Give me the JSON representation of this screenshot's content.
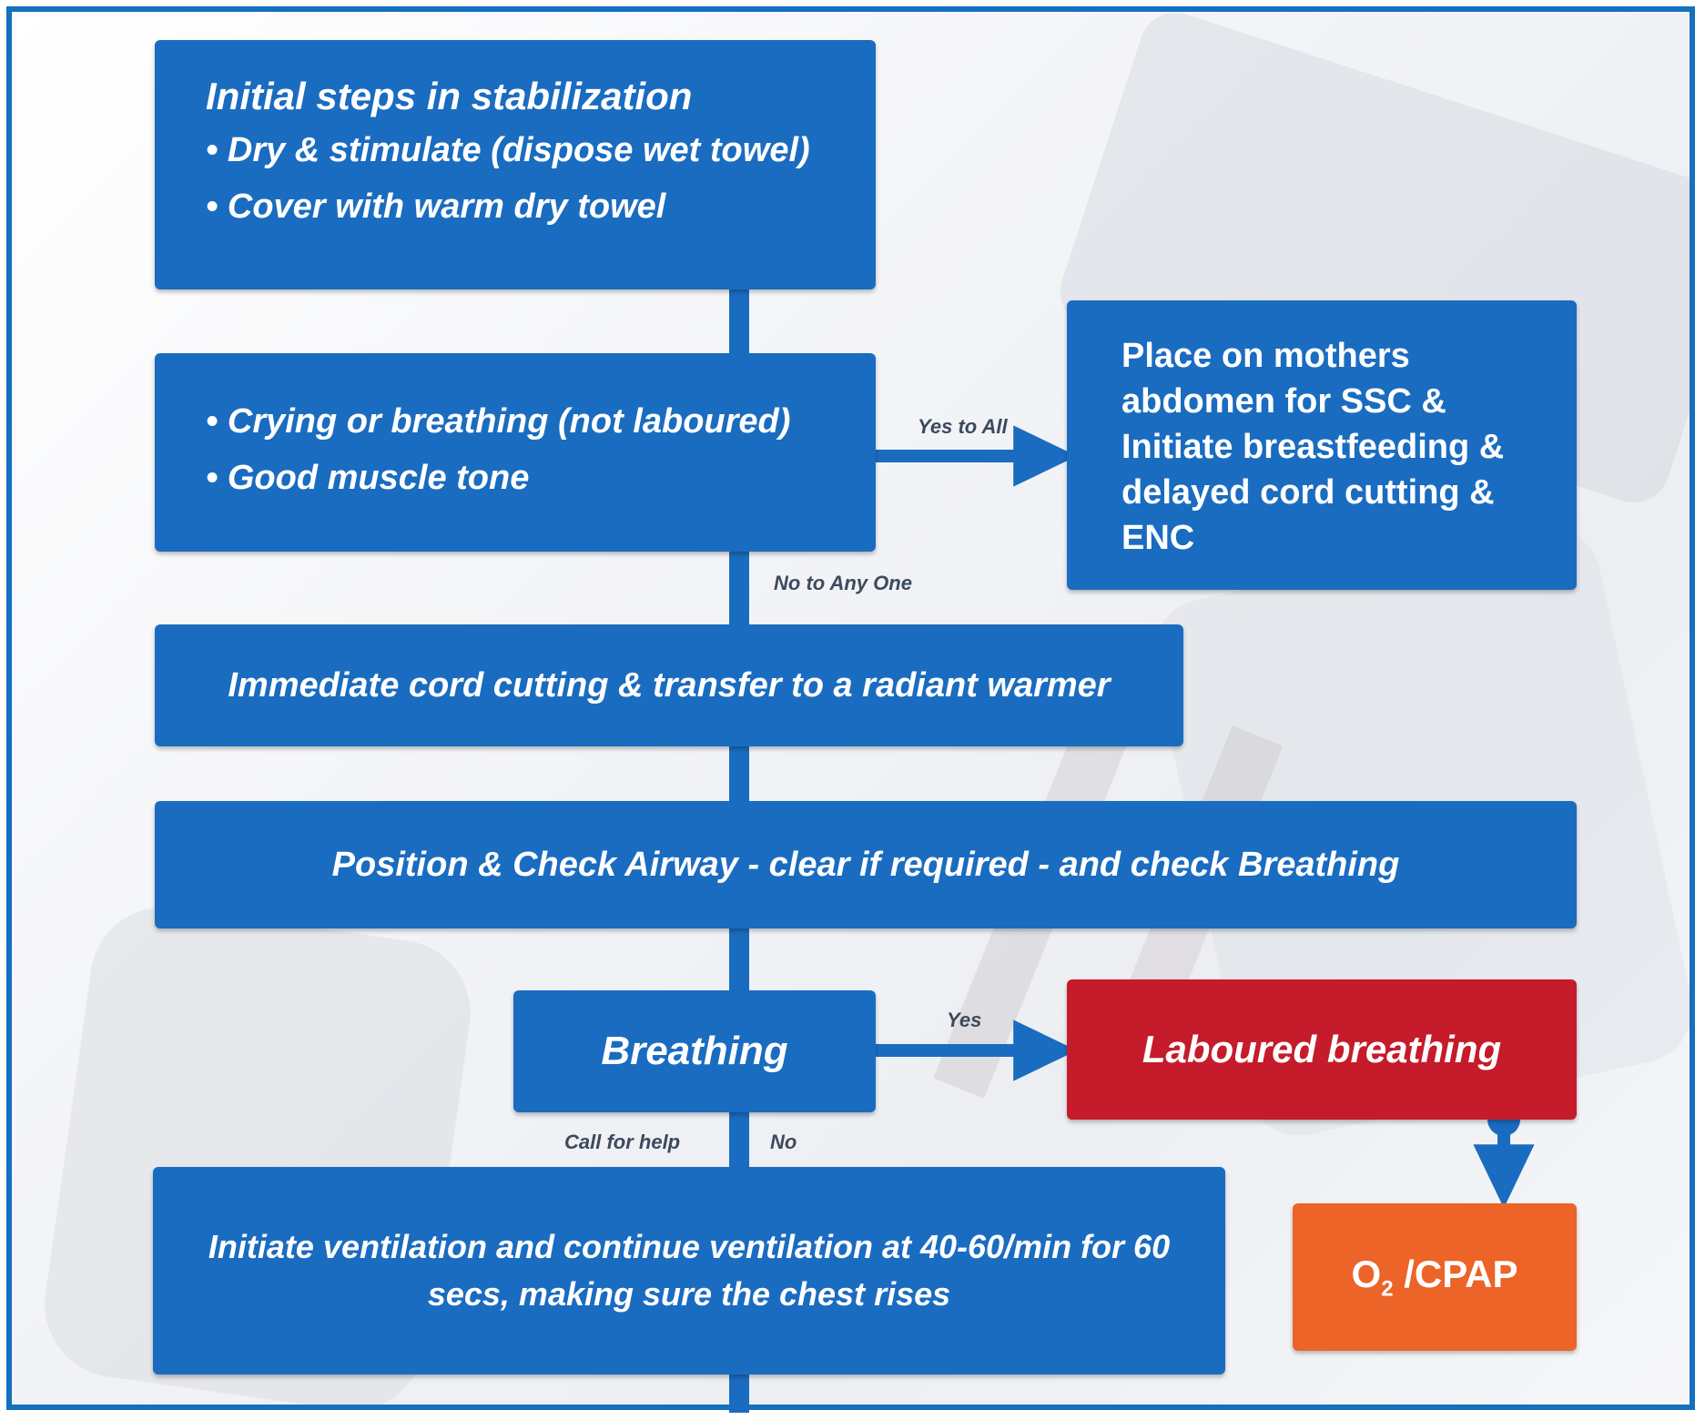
{
  "boxes": {
    "initial": {
      "title": "Initial steps in stabilization",
      "bullets": [
        "Dry & stimulate (dispose wet towel)",
        "Cover with warm dry towel"
      ]
    },
    "assess": {
      "bullets": [
        "Crying or breathing (not laboured)",
        "Good muscle tone"
      ]
    },
    "mother": {
      "lines": [
        "Place on mothers",
        "abdomen for SSC &",
        "Initiate breastfeeding &",
        "delayed cord cutting &",
        "ENC"
      ]
    },
    "cord": {
      "text": "Immediate cord cutting & transfer to a radiant warmer"
    },
    "airway": {
      "text": "Position & Check Airway - clear if required - and check Breathing"
    },
    "breathing": {
      "text": "Breathing"
    },
    "laboured": {
      "text": "Laboured breathing"
    },
    "ventilation": {
      "lines": [
        "Initiate ventilation and continue ventilation at 40-60/min for 60",
        "secs, making sure the chest rises"
      ]
    },
    "cpap": {
      "main": "O",
      "sub": "2",
      "rest": " /CPAP"
    }
  },
  "labels": {
    "yes_to_all": "Yes to All",
    "no_to_any": "No to Any One",
    "yes": "Yes",
    "call_for_help": "Call for help",
    "no": "No"
  },
  "colors": {
    "blue": "#1a6cc0",
    "red": "#c51b2b",
    "orange": "#ec6427",
    "border": "#1570be"
  }
}
